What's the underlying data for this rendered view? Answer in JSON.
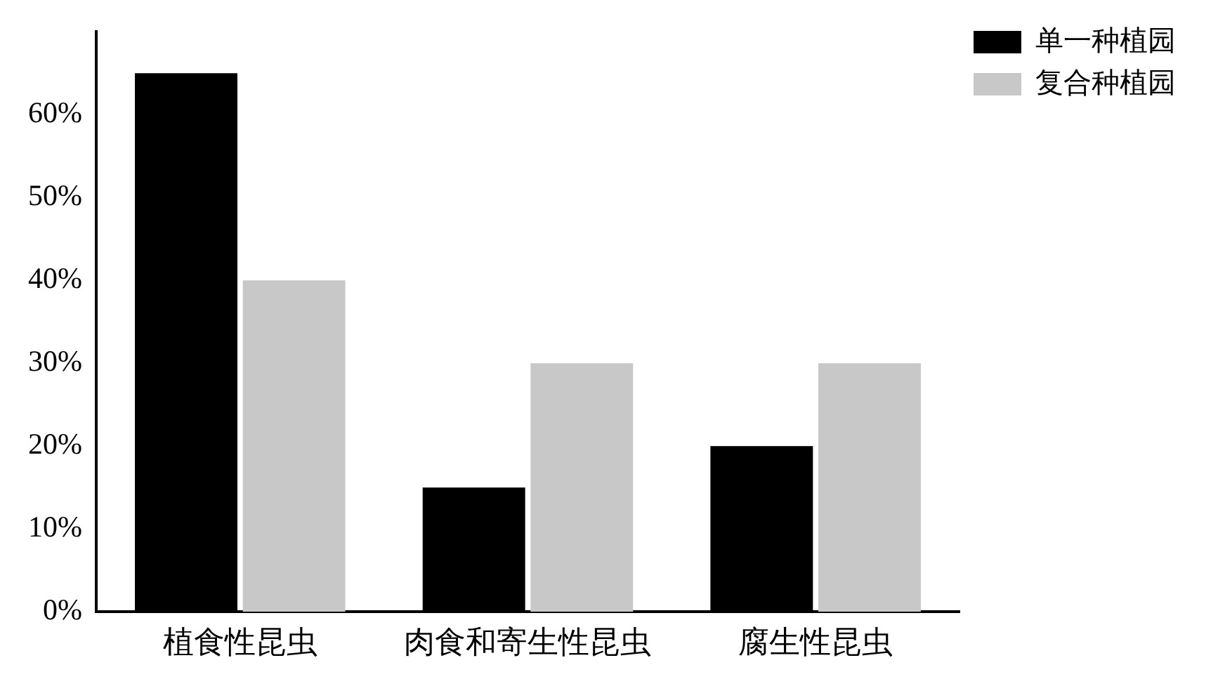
{
  "chart_data": {
    "type": "bar",
    "categories": [
      "植食性昆虫",
      "肉食和寄生性昆虫",
      "腐生性昆虫"
    ],
    "series": [
      {
        "name": "单一种植园",
        "color": "#000000",
        "values": [
          65,
          15,
          20
        ]
      },
      {
        "name": "复合种植园",
        "color": "#c8c8c8",
        "values": [
          40,
          30,
          30
        ]
      }
    ],
    "ylim": [
      0,
      70
    ],
    "yticks": [
      {
        "value": 0,
        "label": "0%"
      },
      {
        "value": 10,
        "label": "10%"
      },
      {
        "value": 20,
        "label": "20%"
      },
      {
        "value": 30,
        "label": "30%"
      },
      {
        "value": 40,
        "label": "40%"
      },
      {
        "value": 50,
        "label": "50%"
      },
      {
        "value": 60,
        "label": "60%"
      }
    ],
    "grid": false,
    "legend": "top right"
  }
}
